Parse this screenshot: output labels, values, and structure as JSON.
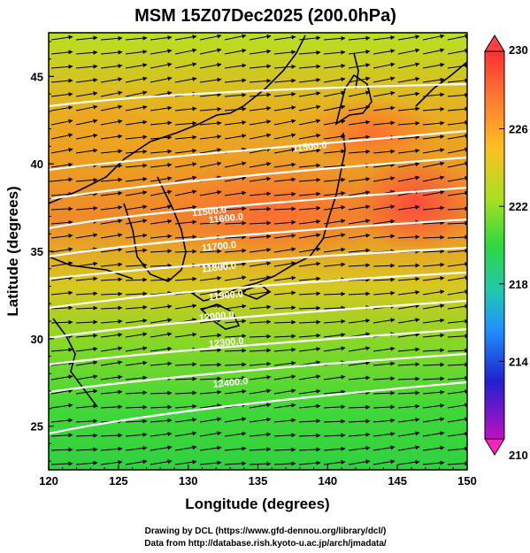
{
  "title": "MSM 15Z07Dec2025 (200.0hPa)",
  "x_axis": {
    "label": "Longitude (degrees)",
    "ticks": [
      "120",
      "125",
      "130",
      "135",
      "140",
      "145",
      "150"
    ],
    "range": [
      120,
      150
    ]
  },
  "y_axis": {
    "label": "Latitude  (degrees)",
    "ticks": [
      "25",
      "30",
      "35",
      "40",
      "45"
    ],
    "range": [
      22.5,
      47.5
    ]
  },
  "colorbar": {
    "ticks": [
      "230",
      "226",
      "222",
      "218",
      "214",
      "210"
    ],
    "range": [
      210,
      230
    ],
    "colors": [
      "#e0e0e0",
      "#ff2060",
      "#ff7030",
      "#ffc020",
      "#c0e020",
      "#40e040",
      "#20d0c0",
      "#2080ff",
      "#2020c0",
      "#a000c0",
      "#ff20c0"
    ]
  },
  "contours": {
    "color": "#ffffff",
    "labels": [
      {
        "text": "11500.0",
        "lon": 137.5,
        "lat": 40.7
      },
      {
        "text": "11500.0",
        "lon": 130.3,
        "lat": 37.0
      },
      {
        "text": "11600.0",
        "lon": 131.5,
        "lat": 36.6
      },
      {
        "text": "11700.0",
        "lon": 131.0,
        "lat": 35.0
      },
      {
        "text": "11800.0",
        "lon": 131.0,
        "lat": 33.8
      },
      {
        "text": "11900.0",
        "lon": 131.5,
        "lat": 32.2
      },
      {
        "text": "12000.0",
        "lon": 130.8,
        "lat": 31.0
      },
      {
        "text": "12300.0",
        "lon": 131.5,
        "lat": 29.5
      },
      {
        "text": "12400.0",
        "lon": 131.8,
        "lat": 27.2
      }
    ]
  },
  "credits": [
    "Drawing by DCL (https://www.gfd-dennou.org/library/dcl/)",
    "Data from http://database.rish.kyoto-u.ac.jp/arch/jmadata/"
  ]
}
